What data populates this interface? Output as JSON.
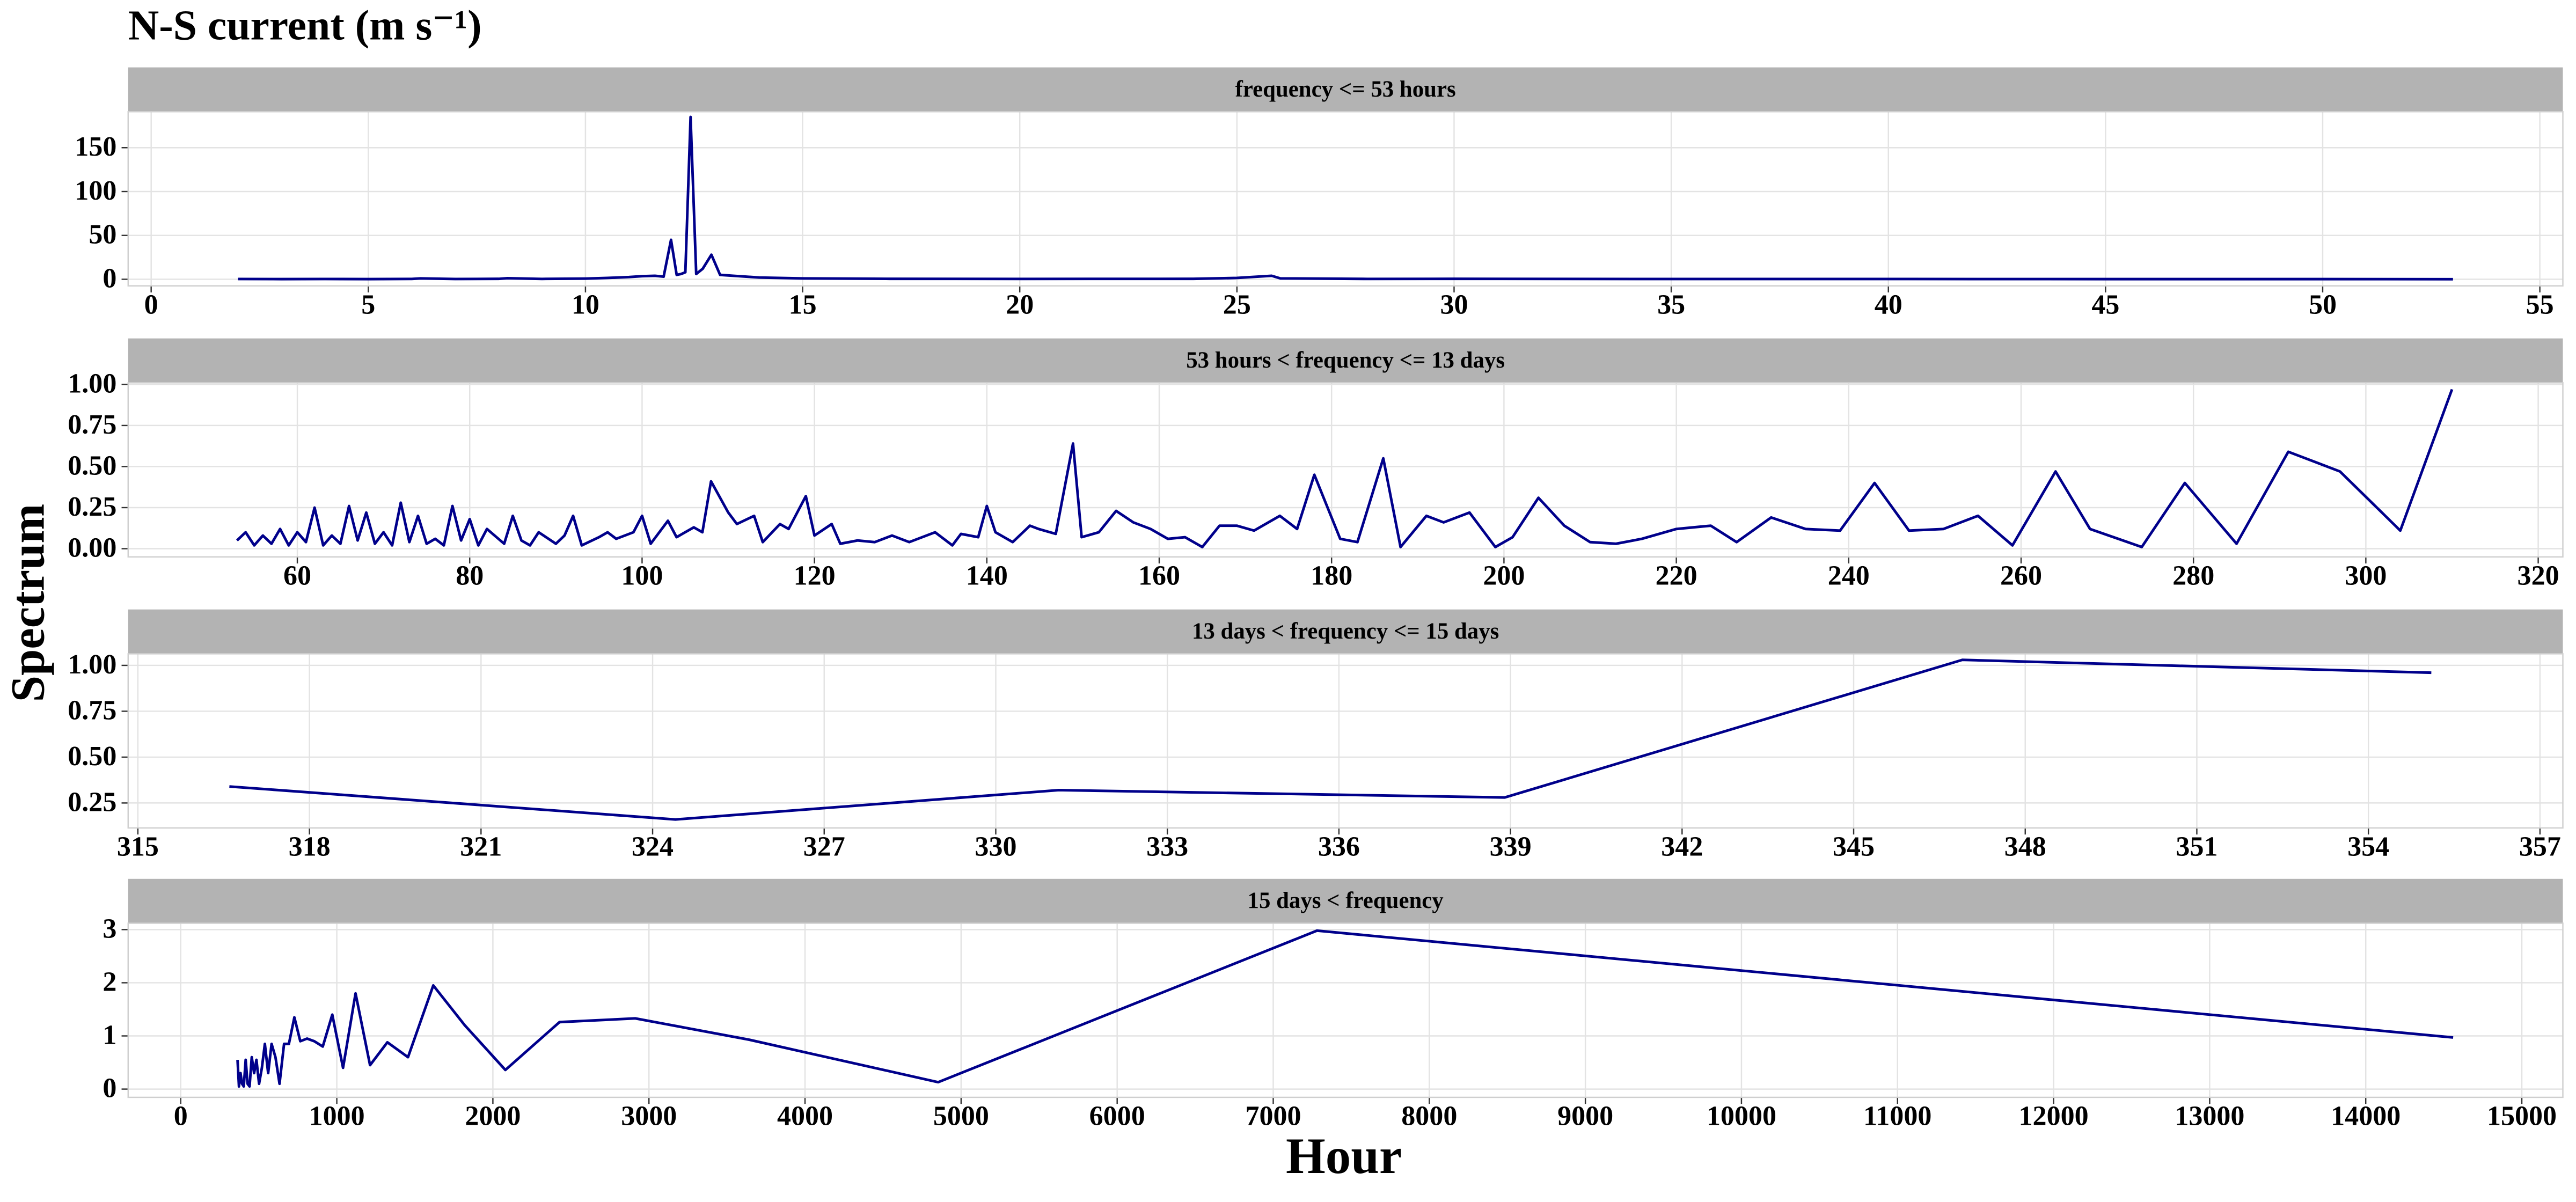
{
  "title": "N-S current (m s⁻¹)",
  "xlabel": "Hour",
  "ylabel": "Spectrum",
  "chart_data": [
    {
      "type": "line",
      "title": "frequency <= 53 hours",
      "color": "#00008b",
      "x": [
        2,
        3,
        4,
        5,
        6,
        6.2,
        7,
        8,
        8.2,
        9,
        10,
        10.5,
        11,
        11.3,
        11.6,
        11.8,
        11.97,
        12.1,
        12.2,
        12.3,
        12.42,
        12.55,
        12.7,
        12.9,
        13.1,
        13.4,
        13.7,
        14,
        15,
        17,
        20,
        24,
        25,
        25.8,
        26,
        28,
        30,
        35,
        40,
        45,
        50,
        53
      ],
      "values": [
        0.3,
        0.2,
        0.3,
        0.2,
        0.4,
        1.0,
        0.3,
        0.5,
        1.2,
        0.4,
        0.8,
        1.5,
        2.5,
        3.5,
        4,
        3,
        45,
        5,
        6,
        8,
        185,
        6,
        12,
        28,
        5,
        4,
        3,
        2,
        1,
        0.5,
        0.4,
        0.5,
        1.5,
        4,
        1,
        0.4,
        0.5,
        0.3,
        0.3,
        0.2,
        0.2,
        0.1
      ],
      "xlim": [
        -0.53,
        55.53
      ],
      "ylim": [
        -7.5,
        191
      ],
      "xticks": [
        0,
        5,
        10,
        15,
        20,
        25,
        30,
        35,
        40,
        45,
        50,
        55
      ],
      "yticks": [
        0,
        50,
        100,
        150
      ]
    },
    {
      "type": "line",
      "title": "53 hours < frequency <= 13 days",
      "color": "#00008b",
      "x": [
        53,
        54,
        55,
        56,
        57,
        58,
        59,
        60,
        61,
        62,
        63,
        64,
        65,
        66,
        67,
        68,
        69,
        70,
        71,
        72,
        73,
        74,
        75,
        76,
        77,
        78,
        79,
        80,
        81,
        82,
        84,
        85,
        86,
        87,
        88,
        90,
        91,
        92,
        93,
        95,
        96,
        97,
        99,
        100,
        101,
        103,
        104,
        106,
        107,
        108,
        110,
        111,
        113,
        114,
        116,
        117,
        119,
        120,
        122,
        123,
        125,
        127,
        129,
        131,
        133,
        134,
        136,
        137,
        139,
        140,
        141,
        143,
        145,
        146,
        148,
        150,
        151,
        153,
        155,
        157,
        159,
        161,
        163,
        165,
        167,
        169,
        171,
        174,
        176,
        178,
        181,
        183,
        186,
        188,
        191,
        193,
        196,
        199,
        201,
        204,
        207,
        210,
        213,
        216,
        220,
        224,
        227,
        231,
        235,
        239,
        243,
        247,
        251,
        255,
        259,
        264,
        268,
        274,
        279,
        285,
        291,
        297,
        304,
        310
      ],
      "values": [
        0.05,
        0.1,
        0.02,
        0.08,
        0.03,
        0.12,
        0.02,
        0.1,
        0.04,
        0.25,
        0.02,
        0.08,
        0.03,
        0.26,
        0.05,
        0.22,
        0.03,
        0.1,
        0.02,
        0.28,
        0.04,
        0.2,
        0.03,
        0.06,
        0.02,
        0.26,
        0.05,
        0.18,
        0.02,
        0.12,
        0.03,
        0.2,
        0.05,
        0.02,
        0.1,
        0.03,
        0.08,
        0.2,
        0.02,
        0.07,
        0.1,
        0.06,
        0.1,
        0.2,
        0.03,
        0.17,
        0.07,
        0.13,
        0.1,
        0.41,
        0.22,
        0.15,
        0.2,
        0.04,
        0.15,
        0.12,
        0.32,
        0.08,
        0.15,
        0.03,
        0.05,
        0.04,
        0.08,
        0.04,
        0.08,
        0.1,
        0.02,
        0.09,
        0.07,
        0.26,
        0.1,
        0.04,
        0.14,
        0.12,
        0.09,
        0.64,
        0.07,
        0.1,
        0.23,
        0.16,
        0.12,
        0.06,
        0.07,
        0.01,
        0.14,
        0.14,
        0.11,
        0.2,
        0.12,
        0.45,
        0.06,
        0.04,
        0.55,
        0.01,
        0.2,
        0.16,
        0.22,
        0.01,
        0.07,
        0.31,
        0.14,
        0.04,
        0.03,
        0.06,
        0.12,
        0.14,
        0.04,
        0.19,
        0.12,
        0.11,
        0.4,
        0.11,
        0.12,
        0.2,
        0.02,
        0.47,
        0.12,
        0.01,
        0.4,
        0.03,
        0.59,
        0.47,
        0.11,
        0.97
      ],
      "xlim": [
        40.37,
        322.86
      ],
      "ylim": [
        -0.05,
        1.01
      ],
      "xticks": [
        60,
        80,
        100,
        120,
        140,
        160,
        180,
        200,
        220,
        240,
        260,
        280,
        300,
        320
      ],
      "yticks": [
        {
          "value": 0,
          "label": "0.00"
        },
        0.25,
        {
          "value": 0.5,
          "label": "0.50"
        },
        0.75,
        {
          "value": 1,
          "label": "1.00"
        }
      ]
    },
    {
      "type": "line",
      "title": "13 days < frequency <= 15 days",
      "color": "#00008b",
      "x": [
        316.6,
        324.4,
        331.1,
        338.9,
        346.9,
        355.1
      ],
      "values": [
        0.34,
        0.16,
        0.32,
        0.28,
        1.03,
        0.96
      ],
      "xlim": [
        314.83,
        357.4
      ],
      "ylim": [
        0.114,
        1.063
      ],
      "xticks": [
        315,
        318,
        321,
        324,
        327,
        330,
        333,
        336,
        339,
        342,
        345,
        348,
        351,
        354,
        357
      ],
      "yticks": [
        0.25,
        {
          "value": 0.5,
          "label": "0.50"
        },
        0.75,
        {
          "value": 1,
          "label": "1.00"
        }
      ]
    },
    {
      "type": "line",
      "title": "15 days < frequency",
      "color": "#00008b",
      "x": [
        364,
        373,
        383,
        393,
        404,
        416,
        428,
        441,
        455,
        470,
        485,
        502,
        520,
        539,
        560,
        582,
        607,
        633,
        662,
        693,
        728,
        766,
        809,
        856,
        910,
        971,
        1040,
        1120,
        1213,
        1324,
        1456,
        1618,
        1820,
        2080,
        2427,
        2912,
        3640,
        4853,
        7280,
        14560
      ],
      "values": [
        0.55,
        0.05,
        0.3,
        0.1,
        0.05,
        0.55,
        0.1,
        0.05,
        0.6,
        0.3,
        0.55,
        0.1,
        0.4,
        0.85,
        0.3,
        0.85,
        0.6,
        0.1,
        0.85,
        0.85,
        1.35,
        0.9,
        0.95,
        0.9,
        0.8,
        1.4,
        0.4,
        1.8,
        0.45,
        0.88,
        0.6,
        1.95,
        1.2,
        0.36,
        1.26,
        1.33,
        0.93,
        0.13,
        2.98,
        0.97
      ],
      "xlim": [
        -337,
        15263
      ],
      "ylim": [
        -0.155,
        3.12
      ],
      "xticks": [
        0,
        1000,
        2000,
        3000,
        4000,
        5000,
        6000,
        7000,
        8000,
        9000,
        10000,
        11000,
        12000,
        13000,
        14000,
        15000
      ],
      "yticks": [
        0,
        1,
        2,
        3
      ]
    }
  ]
}
